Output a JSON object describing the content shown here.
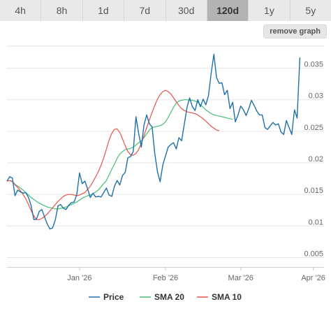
{
  "timeframes": [
    {
      "label": "4h",
      "active": false
    },
    {
      "label": "8h",
      "active": false
    },
    {
      "label": "1d",
      "active": false
    },
    {
      "label": "7d",
      "active": false
    },
    {
      "label": "30d",
      "active": false
    },
    {
      "label": "120d",
      "active": true
    },
    {
      "label": "1y",
      "active": false
    },
    {
      "label": "5y",
      "active": false
    }
  ],
  "remove_graph_label": "remove graph",
  "chart_data": {
    "type": "line",
    "x_ticks": [
      "Jan '26",
      "Feb '26",
      "Mar '26",
      "Apr '26"
    ],
    "y_ticks": [
      0.005,
      0.01,
      0.015,
      0.02,
      0.025,
      0.03,
      0.035
    ],
    "ylim": [
      0.0035,
      0.0385
    ],
    "grid": true,
    "legend_position": "bottom",
    "series": [
      {
        "name": "Price",
        "color": "#1f6fa8",
        "values": [
          0.0171,
          0.0178,
          0.0176,
          0.0148,
          0.0157,
          0.0154,
          0.0152,
          0.0153,
          0.0145,
          0.0132,
          0.011,
          0.0111,
          0.0123,
          0.0126,
          0.0114,
          0.0103,
          0.0095,
          0.0097,
          0.011,
          0.0132,
          0.0134,
          0.0128,
          0.0126,
          0.0133,
          0.0137,
          0.0138,
          0.015,
          0.0184,
          0.0167,
          0.0171,
          0.0159,
          0.0145,
          0.0152,
          0.0146,
          0.0147,
          0.0146,
          0.0153,
          0.016,
          0.0149,
          0.0147,
          0.0163,
          0.0172,
          0.0165,
          0.018,
          0.0185,
          0.0208,
          0.021,
          0.0218,
          0.0273,
          0.0247,
          0.0225,
          0.026,
          0.0276,
          0.0262,
          0.0257,
          0.0215,
          0.0186,
          0.017,
          0.0197,
          0.0211,
          0.0225,
          0.0229,
          0.0232,
          0.0222,
          0.024,
          0.0235,
          0.0261,
          0.0288,
          0.0303,
          0.0289,
          0.0283,
          0.03,
          0.0289,
          0.0301,
          0.0292,
          0.0307,
          0.0342,
          0.0372,
          0.0335,
          0.0326,
          0.0327,
          0.0308,
          0.0315,
          0.0286,
          0.0296,
          0.0265,
          0.0276,
          0.029,
          0.0284,
          0.0275,
          0.0286,
          0.0299,
          0.0291,
          0.0282,
          0.0276,
          0.0276,
          0.0256,
          0.0253,
          0.0259,
          0.0264,
          0.026,
          0.0262,
          0.0249,
          0.0245,
          0.0267,
          0.0256,
          0.0245,
          0.0284,
          0.0271,
          0.0367
        ]
      },
      {
        "name": "SMA 20",
        "color": "#44c07a",
        "values": [
          0.0171,
          0.0172,
          0.0171,
          0.0166,
          0.0163,
          0.016,
          0.0157,
          0.0153,
          0.0149,
          0.0145,
          0.0142,
          0.0139,
          0.0136,
          0.0134,
          0.0132,
          0.013,
          0.0129,
          0.0128,
          0.0127,
          0.0127,
          0.0128,
          0.0129,
          0.013,
          0.0132,
          0.0134,
          0.0136,
          0.0138,
          0.0141,
          0.0144,
          0.0146,
          0.0148,
          0.0149,
          0.0151,
          0.0154,
          0.0157,
          0.0162,
          0.0167,
          0.0172,
          0.0181,
          0.019,
          0.0198,
          0.0207,
          0.0214,
          0.0218,
          0.0221,
          0.0222,
          0.0223,
          0.0225,
          0.0228,
          0.0232,
          0.0235,
          0.024,
          0.0246,
          0.0252,
          0.0256,
          0.0257,
          0.0258,
          0.0259,
          0.0261,
          0.0265,
          0.0272,
          0.028,
          0.0288,
          0.0295,
          0.0298,
          0.0299,
          0.03,
          0.03,
          0.0299,
          0.0299,
          0.0298,
          0.0296,
          0.0292,
          0.0288,
          0.0284,
          0.0281,
          0.0278,
          0.0276,
          0.0275,
          0.0274,
          0.0273,
          0.0272,
          0.0271,
          0.027,
          0.0269
        ]
      },
      {
        "name": "SMA 10",
        "color": "#e8534a",
        "values": [
          0.0171,
          0.0172,
          0.017,
          0.0165,
          0.0161,
          0.0156,
          0.015,
          0.0143,
          0.0134,
          0.0124,
          0.0116,
          0.011,
          0.011,
          0.0112,
          0.0115,
          0.0119,
          0.0124,
          0.0129,
          0.0134,
          0.0139,
          0.0143,
          0.0147,
          0.0149,
          0.015,
          0.015,
          0.0149,
          0.0148,
          0.0149,
          0.0151,
          0.0153,
          0.0158,
          0.0163,
          0.017,
          0.0178,
          0.0186,
          0.0196,
          0.0208,
          0.0222,
          0.0236,
          0.0247,
          0.0253,
          0.0254,
          0.0248,
          0.0238,
          0.0227,
          0.0218,
          0.0213,
          0.0212,
          0.0215,
          0.0221,
          0.0231,
          0.0243,
          0.0256,
          0.0268,
          0.028,
          0.0291,
          0.0301,
          0.0308,
          0.0313,
          0.0315,
          0.0313,
          0.0309,
          0.0303,
          0.0297,
          0.0291,
          0.0286,
          0.0283,
          0.0281,
          0.028,
          0.0279,
          0.0278,
          0.0276,
          0.0273,
          0.027,
          0.0266,
          0.0262,
          0.0258,
          0.0255,
          0.0252,
          0.0251
        ]
      }
    ]
  }
}
